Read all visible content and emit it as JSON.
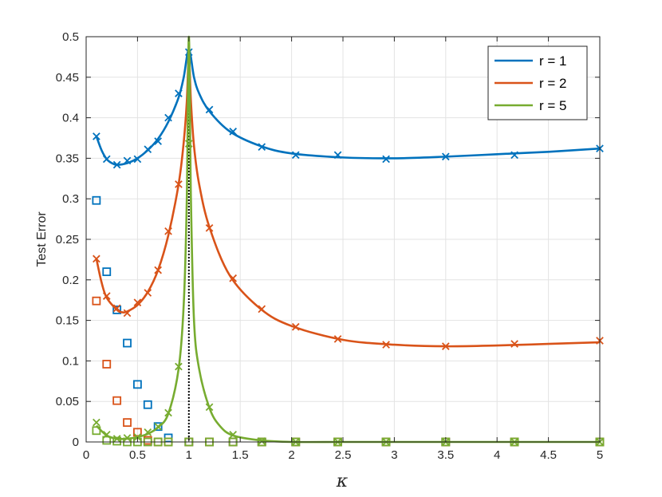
{
  "chart_data": {
    "type": "line",
    "title": "",
    "xlabel": "κ",
    "ylabel": "Test Error",
    "xlim": [
      0,
      5
    ],
    "ylim": [
      0,
      0.5
    ],
    "xticks": [
      0,
      0.5,
      1,
      1.5,
      2,
      2.5,
      3,
      3.5,
      4,
      4.5,
      5
    ],
    "xtick_labels": [
      "0",
      "0.5",
      "1",
      "1.5",
      "2",
      "2.5",
      "3",
      "3.5",
      "4",
      "4.5",
      "5"
    ],
    "yticks": [
      0,
      0.05,
      0.1,
      0.15,
      0.2,
      0.25,
      0.3,
      0.35,
      0.4,
      0.45,
      0.5
    ],
    "ytick_labels": [
      "0",
      "0.05",
      "0.1",
      "0.15",
      "0.2",
      "0.25",
      "0.3",
      "0.35",
      "0.4",
      "0.45",
      "0.5"
    ],
    "grid": true,
    "legend_position": "top-right",
    "vertical_line": {
      "x": 1,
      "style": "dotted",
      "color": "#000000"
    },
    "series": [
      {
        "name": "r = 1",
        "color": "#0072BD",
        "curve": [
          [
            0.1,
            0.377
          ],
          [
            0.15,
            0.36
          ],
          [
            0.2,
            0.349
          ],
          [
            0.25,
            0.344
          ],
          [
            0.3,
            0.342
          ],
          [
            0.4,
            0.344
          ],
          [
            0.5,
            0.35
          ],
          [
            0.6,
            0.36
          ],
          [
            0.7,
            0.374
          ],
          [
            0.8,
            0.395
          ],
          [
            0.9,
            0.425
          ],
          [
            0.95,
            0.45
          ],
          [
            1.0,
            0.484
          ],
          [
            1.05,
            0.45
          ],
          [
            1.1,
            0.43
          ],
          [
            1.2,
            0.408
          ],
          [
            1.4,
            0.383
          ],
          [
            1.7,
            0.365
          ],
          [
            2.0,
            0.356
          ],
          [
            2.5,
            0.351
          ],
          [
            3.0,
            0.35
          ],
          [
            3.5,
            0.352
          ],
          [
            4.0,
            0.355
          ],
          [
            4.5,
            0.358
          ],
          [
            5.0,
            0.362
          ]
        ],
        "crosses": [
          [
            0.1,
            0.377
          ],
          [
            0.2,
            0.349
          ],
          [
            0.3,
            0.342
          ],
          [
            0.4,
            0.347
          ],
          [
            0.5,
            0.349
          ],
          [
            0.6,
            0.361
          ],
          [
            0.7,
            0.371
          ],
          [
            0.8,
            0.4
          ],
          [
            0.9,
            0.43
          ],
          [
            1.0,
            0.481
          ],
          [
            1.2,
            0.41
          ],
          [
            1.43,
            0.383
          ],
          [
            1.71,
            0.364
          ],
          [
            2.04,
            0.354
          ],
          [
            2.45,
            0.354
          ],
          [
            2.92,
            0.349
          ],
          [
            3.5,
            0.352
          ],
          [
            4.17,
            0.354
          ],
          [
            5.0,
            0.362
          ]
        ],
        "squares": [
          [
            0.1,
            0.298
          ],
          [
            0.2,
            0.21
          ],
          [
            0.3,
            0.163
          ],
          [
            0.4,
            0.122
          ],
          [
            0.5,
            0.071
          ],
          [
            0.6,
            0.046
          ],
          [
            0.7,
            0.019
          ],
          [
            0.8,
            0.005
          ],
          [
            1.0,
            0.0
          ],
          [
            1.2,
            0.0
          ],
          [
            1.43,
            0.0
          ],
          [
            1.71,
            0.0
          ],
          [
            2.04,
            0.0
          ],
          [
            2.45,
            0.0
          ],
          [
            2.92,
            0.0
          ],
          [
            3.5,
            0.0
          ],
          [
            4.17,
            0.0
          ],
          [
            5.0,
            0.0
          ]
        ]
      },
      {
        "name": "r = 2",
        "color": "#D95319",
        "curve": [
          [
            0.1,
            0.226
          ],
          [
            0.15,
            0.197
          ],
          [
            0.2,
            0.178
          ],
          [
            0.3,
            0.163
          ],
          [
            0.35,
            0.16
          ],
          [
            0.4,
            0.161
          ],
          [
            0.5,
            0.169
          ],
          [
            0.6,
            0.185
          ],
          [
            0.7,
            0.212
          ],
          [
            0.8,
            0.255
          ],
          [
            0.9,
            0.318
          ],
          [
            0.95,
            0.37
          ],
          [
            0.98,
            0.42
          ],
          [
            1.0,
            0.478
          ],
          [
            1.02,
            0.42
          ],
          [
            1.05,
            0.365
          ],
          [
            1.1,
            0.318
          ],
          [
            1.2,
            0.265
          ],
          [
            1.4,
            0.205
          ],
          [
            1.7,
            0.164
          ],
          [
            2.0,
            0.143
          ],
          [
            2.5,
            0.126
          ],
          [
            3.0,
            0.12
          ],
          [
            3.5,
            0.118
          ],
          [
            4.0,
            0.119
          ],
          [
            4.5,
            0.121
          ],
          [
            5.0,
            0.123
          ]
        ],
        "crosses": [
          [
            0.1,
            0.226
          ],
          [
            0.2,
            0.18
          ],
          [
            0.3,
            0.165
          ],
          [
            0.4,
            0.159
          ],
          [
            0.5,
            0.172
          ],
          [
            0.6,
            0.184
          ],
          [
            0.7,
            0.212
          ],
          [
            0.8,
            0.26
          ],
          [
            0.9,
            0.318
          ],
          [
            1.2,
            0.264
          ],
          [
            1.43,
            0.202
          ],
          [
            1.71,
            0.164
          ],
          [
            2.04,
            0.142
          ],
          [
            2.45,
            0.127
          ],
          [
            2.92,
            0.12
          ],
          [
            3.5,
            0.118
          ],
          [
            4.17,
            0.121
          ],
          [
            5.0,
            0.125
          ]
        ],
        "squares": [
          [
            0.1,
            0.174
          ],
          [
            0.2,
            0.096
          ],
          [
            0.3,
            0.051
          ],
          [
            0.4,
            0.024
          ],
          [
            0.5,
            0.012
          ],
          [
            0.6,
            0.002
          ],
          [
            0.7,
            0.0
          ],
          [
            0.8,
            0.0
          ],
          [
            1.0,
            0.0
          ],
          [
            1.2,
            0.0
          ],
          [
            1.43,
            0.0
          ],
          [
            1.71,
            0.0
          ],
          [
            2.04,
            0.0
          ],
          [
            2.45,
            0.0
          ],
          [
            2.92,
            0.0
          ],
          [
            3.5,
            0.0
          ],
          [
            4.17,
            0.0
          ],
          [
            5.0,
            0.0
          ]
        ]
      },
      {
        "name": "r = 5",
        "color": "#77AC30",
        "curve": [
          [
            0.1,
            0.02
          ],
          [
            0.2,
            0.008
          ],
          [
            0.3,
            0.004
          ],
          [
            0.4,
            0.004
          ],
          [
            0.5,
            0.006
          ],
          [
            0.6,
            0.01
          ],
          [
            0.7,
            0.018
          ],
          [
            0.8,
            0.035
          ],
          [
            0.9,
            0.09
          ],
          [
            0.95,
            0.17
          ],
          [
            0.98,
            0.3
          ],
          [
            1.0,
            0.5
          ],
          [
            1.02,
            0.3
          ],
          [
            1.05,
            0.15
          ],
          [
            1.1,
            0.09
          ],
          [
            1.2,
            0.042
          ],
          [
            1.3,
            0.02
          ],
          [
            1.43,
            0.008
          ],
          [
            1.7,
            0.002
          ],
          [
            2.0,
            0.0
          ],
          [
            2.5,
            0.0
          ],
          [
            3.0,
            0.0
          ],
          [
            3.5,
            0.0
          ],
          [
            4.0,
            0.0
          ],
          [
            4.5,
            0.0
          ],
          [
            5.0,
            0.0
          ]
        ],
        "crosses": [
          [
            0.1,
            0.024
          ],
          [
            0.2,
            0.009
          ],
          [
            0.3,
            0.004
          ],
          [
            0.4,
            0.005
          ],
          [
            0.5,
            0.006
          ],
          [
            0.6,
            0.012
          ],
          [
            0.7,
            0.019
          ],
          [
            0.8,
            0.036
          ],
          [
            0.9,
            0.093
          ],
          [
            1.0,
            0.368
          ],
          [
            1.2,
            0.043
          ],
          [
            1.43,
            0.009
          ],
          [
            1.71,
            0.001
          ],
          [
            2.04,
            0.0
          ],
          [
            2.45,
            0.0
          ],
          [
            2.92,
            0.0
          ],
          [
            3.5,
            0.0
          ],
          [
            4.17,
            0.0
          ],
          [
            5.0,
            0.0
          ]
        ],
        "squares": [
          [
            0.1,
            0.014
          ],
          [
            0.2,
            0.002
          ],
          [
            0.3,
            0.001
          ],
          [
            0.4,
            0.0
          ],
          [
            0.5,
            0.0
          ],
          [
            0.6,
            0.0
          ],
          [
            0.7,
            0.0
          ],
          [
            0.8,
            0.0
          ],
          [
            1.0,
            0.0
          ],
          [
            1.2,
            0.0
          ],
          [
            1.43,
            0.0
          ],
          [
            1.71,
            0.0
          ],
          [
            2.04,
            0.0
          ],
          [
            2.45,
            0.0
          ],
          [
            2.92,
            0.0
          ],
          [
            3.5,
            0.0
          ],
          [
            4.17,
            0.0
          ],
          [
            5.0,
            0.0
          ]
        ]
      }
    ]
  }
}
